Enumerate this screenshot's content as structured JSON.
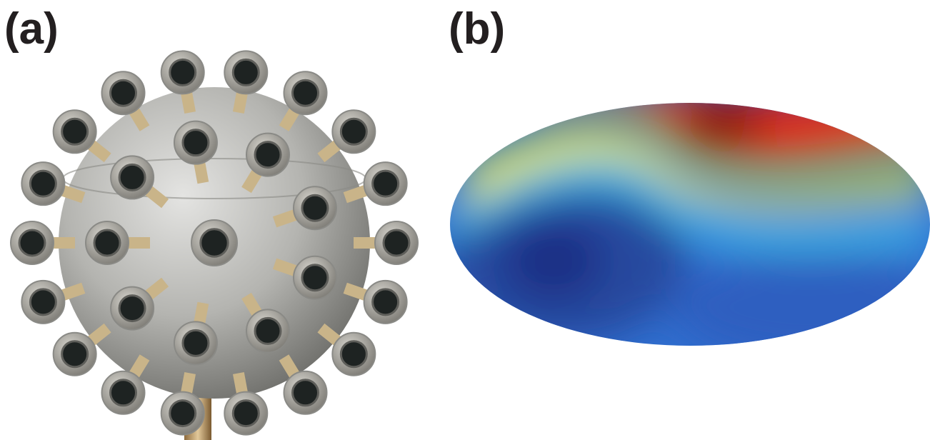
{
  "figure": {
    "panel_a": {
      "label": "(a)",
      "object": "spherical-microphone-array",
      "colors": {
        "metal": "#b8b8b6",
        "capsule_housing": "#8a8a86",
        "capsule_face": "#1e2322"
      }
    },
    "panel_b": {
      "label": "(b)",
      "projection": "mollweide",
      "colormap": [
        "#1f3f9a",
        "#2f6fd0",
        "#41b6e8",
        "#e8e82a",
        "#f08a1e",
        "#c8141c"
      ]
    }
  }
}
